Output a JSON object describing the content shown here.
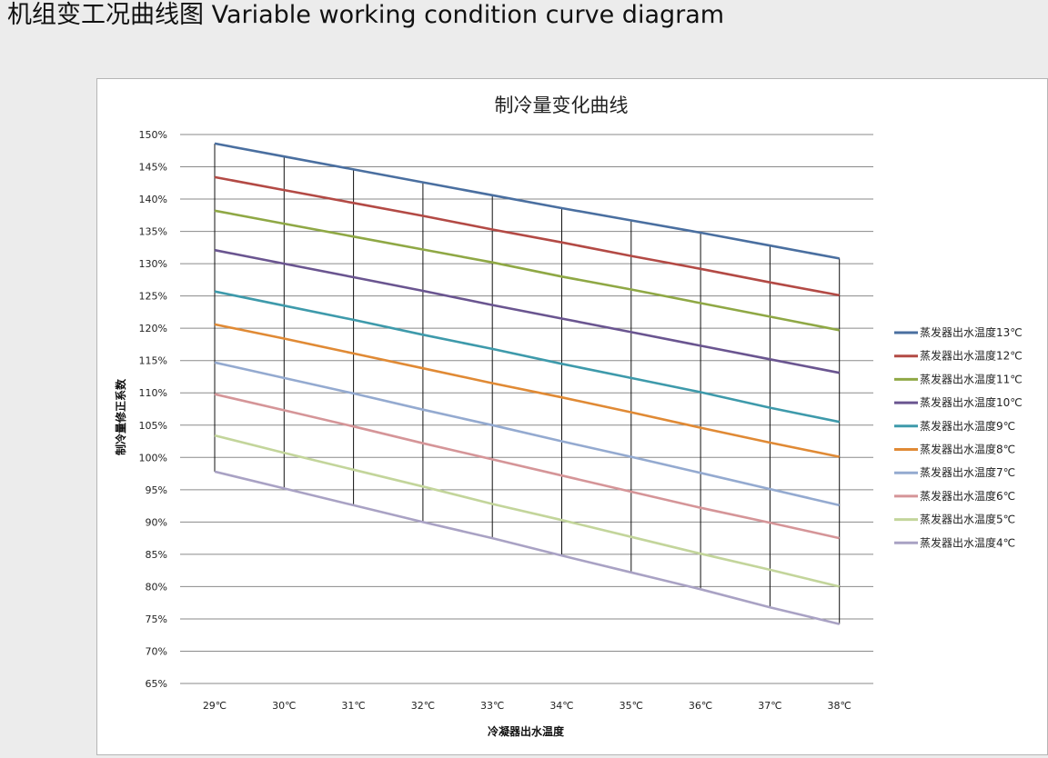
{
  "page": {
    "heading": "机组变工况曲线图 Variable working condition curve diagram"
  },
  "chart_data": {
    "type": "line",
    "title": "制冷量变化曲线",
    "xlabel": "冷凝器出水温度",
    "ylabel": "制冷量修正系数",
    "categories": [
      "29℃",
      "30℃",
      "31℃",
      "32℃",
      "33℃",
      "34℃",
      "35℃",
      "36℃",
      "37℃",
      "38℃"
    ],
    "ylim": [
      65,
      150
    ],
    "y_ticks": [
      "65%",
      "70%",
      "75%",
      "80%",
      "85%",
      "90%",
      "95%",
      "100%",
      "105%",
      "110%",
      "115%",
      "120%",
      "125%",
      "130%",
      "135%",
      "140%",
      "145%",
      "150%"
    ],
    "grid": true,
    "legend_position": "right",
    "series": [
      {
        "name": "蒸发器出水温度13℃",
        "color": "#4a6fa0",
        "values": [
          148.6,
          146.6,
          144.6,
          142.6,
          140.6,
          138.6,
          136.7,
          134.8,
          132.8,
          130.8
        ]
      },
      {
        "name": "蒸发器出水温度12℃",
        "color": "#b34a45",
        "values": [
          143.4,
          141.4,
          139.4,
          137.4,
          135.3,
          133.3,
          131.2,
          129.2,
          127.1,
          125.1
        ]
      },
      {
        "name": "蒸发器出水温度11℃",
        "color": "#8fa845",
        "values": [
          138.2,
          136.2,
          134.2,
          132.2,
          130.2,
          128.0,
          126.0,
          123.9,
          121.8,
          119.7
        ]
      },
      {
        "name": "蒸发器出水温度10℃",
        "color": "#6a5590",
        "values": [
          132.1,
          130.0,
          127.9,
          125.8,
          123.6,
          121.5,
          119.4,
          117.3,
          115.2,
          113.1
        ]
      },
      {
        "name": "蒸发器出水温度9℃",
        "color": "#3e9aab",
        "values": [
          125.7,
          123.5,
          121.3,
          119.0,
          116.8,
          114.5,
          112.3,
          110.1,
          107.7,
          105.5
        ]
      },
      {
        "name": "蒸发器出水温度8℃",
        "color": "#e08a35",
        "values": [
          120.6,
          118.4,
          116.1,
          113.8,
          111.5,
          109.3,
          107.0,
          104.6,
          102.3,
          100.1
        ]
      },
      {
        "name": "蒸发器出水温度7℃",
        "color": "#94aad0",
        "values": [
          114.7,
          112.3,
          109.9,
          107.4,
          105.0,
          102.5,
          100.1,
          97.6,
          95.1,
          92.6
        ]
      },
      {
        "name": "蒸发器出水温度6℃",
        "color": "#d59598",
        "values": [
          109.8,
          107.3,
          104.8,
          102.2,
          99.7,
          97.2,
          94.7,
          92.2,
          89.9,
          87.5
        ]
      },
      {
        "name": "蒸发器出水温度5℃",
        "color": "#c3d59b",
        "values": [
          103.4,
          100.7,
          98.1,
          95.5,
          92.8,
          90.3,
          87.7,
          85.1,
          82.6,
          80.0
        ]
      },
      {
        "name": "蒸发器出水温度4℃",
        "color": "#a9a2c4",
        "values": [
          97.8,
          95.2,
          92.6,
          90.0,
          87.5,
          84.8,
          82.2,
          79.6,
          76.8,
          74.2
        ]
      }
    ]
  }
}
